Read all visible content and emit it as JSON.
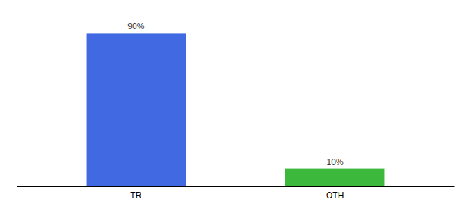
{
  "chart_data": {
    "type": "bar",
    "categories": [
      "TR",
      "OTH"
    ],
    "values": [
      90,
      10
    ],
    "value_labels": [
      "90%",
      "10%"
    ],
    "colors": [
      "#4169e1",
      "#3cb83c"
    ],
    "ylim": [
      0,
      100
    ],
    "data_labels": true,
    "tick_labels": "x"
  }
}
